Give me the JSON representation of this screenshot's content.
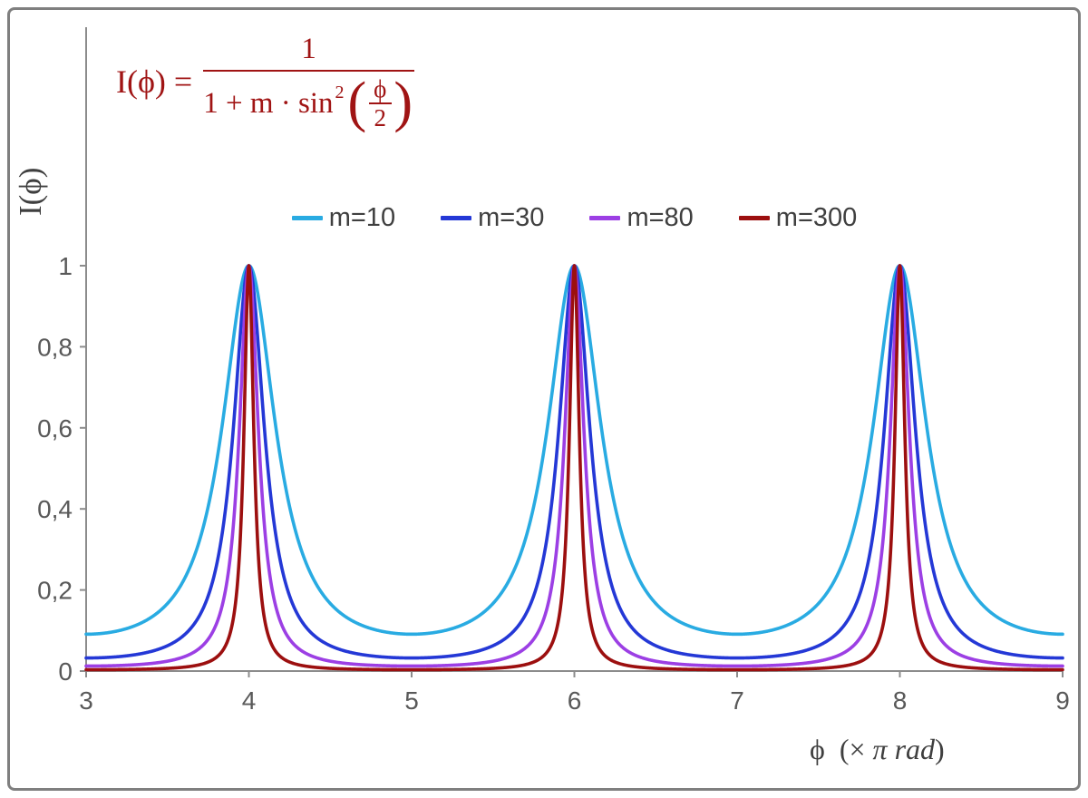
{
  "chart_data": {
    "type": "line",
    "function": "I(x) = 1 / (1 + m * sin^2(x*pi/2)), x expressed in units of pi rad",
    "xlabel": "ϕ (× π rad)",
    "ylabel": "I(ϕ)",
    "xlim": [
      3,
      9
    ],
    "ylim": [
      0,
      1
    ],
    "grid": false,
    "legend_position": "top-center",
    "axis_color": "#8c8c8c",
    "tick_color": "#595959",
    "x_ticks": [
      {
        "value": 3,
        "label": "3"
      },
      {
        "value": 4,
        "label": "4"
      },
      {
        "value": 5,
        "label": "5"
      },
      {
        "value": 6,
        "label": "6"
      },
      {
        "value": 7,
        "label": "7"
      },
      {
        "value": 8,
        "label": "8"
      },
      {
        "value": 9,
        "label": "9"
      }
    ],
    "y_ticks": [
      {
        "value": 0,
        "label": "0"
      },
      {
        "value": 0.2,
        "label": "0,2"
      },
      {
        "value": 0.4,
        "label": "0,4"
      },
      {
        "value": 0.6,
        "label": "0,6"
      },
      {
        "value": 0.8,
        "label": "0,8"
      },
      {
        "value": 1,
        "label": "1"
      }
    ],
    "series": [
      {
        "label": "m=10",
        "m": 10,
        "color": "#29abe2",
        "peak_x": [
          4,
          6,
          8
        ],
        "peak_y": 1,
        "min_y": 0.091
      },
      {
        "label": "m=30",
        "m": 30,
        "color": "#2438d6",
        "peak_x": [
          4,
          6,
          8
        ],
        "peak_y": 1,
        "min_y": 0.032
      },
      {
        "label": "m=80",
        "m": 80,
        "color": "#9c3fe4",
        "peak_x": [
          4,
          6,
          8
        ],
        "peak_y": 1,
        "min_y": 0.012
      },
      {
        "label": "m=300",
        "m": 300,
        "color": "#9c0f0f",
        "peak_x": [
          4,
          6,
          8
        ],
        "peak_y": 1,
        "min_y": 0.003
      }
    ]
  },
  "formula": {
    "color": "#a01414",
    "lhs": "I(ϕ) =",
    "numerator": "1",
    "den_prefix": "1 + m · sin",
    "den_exponent": "2",
    "paren_open": "(",
    "inner_numerator": "ϕ",
    "inner_denominator": "2",
    "paren_close": ")"
  },
  "axes": {
    "ylabel": "I(ϕ)",
    "xlabel_phi": "ϕ  ",
    "xlabel_prefix": "(× ",
    "xlabel_italic": "π rad",
    "xlabel_close": ")"
  }
}
